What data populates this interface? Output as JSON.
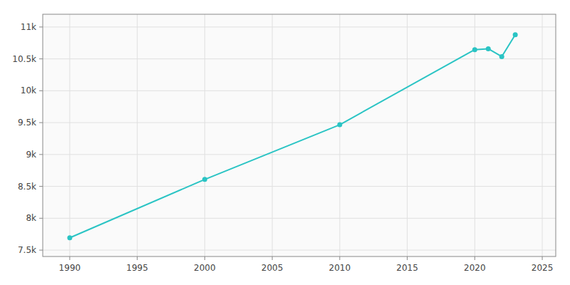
{
  "chart_data": {
    "type": "line",
    "x": [
      1990,
      2000,
      2010,
      2020,
      2021,
      2022,
      2023
    ],
    "values": [
      7693,
      8609,
      9467,
      10645,
      10659,
      10536,
      10878
    ],
    "color": "#2ac4c4",
    "marker": "circle",
    "xlim": [
      1988,
      2026
    ],
    "ylim": [
      7400,
      11200
    ],
    "xticks": [
      1990,
      1995,
      2000,
      2005,
      2010,
      2015,
      2020,
      2025
    ],
    "yticks": [
      {
        "value": 7500,
        "label": "7.5k"
      },
      {
        "value": 8000,
        "label": "8k"
      },
      {
        "value": 8500,
        "label": "8.5k"
      },
      {
        "value": 9000,
        "label": "9k"
      },
      {
        "value": 9500,
        "label": "9.5k"
      },
      {
        "value": 10000,
        "label": "10k"
      },
      {
        "value": 10500,
        "label": "10.5k"
      },
      {
        "value": 11000,
        "label": "11k"
      }
    ],
    "grid": true
  }
}
